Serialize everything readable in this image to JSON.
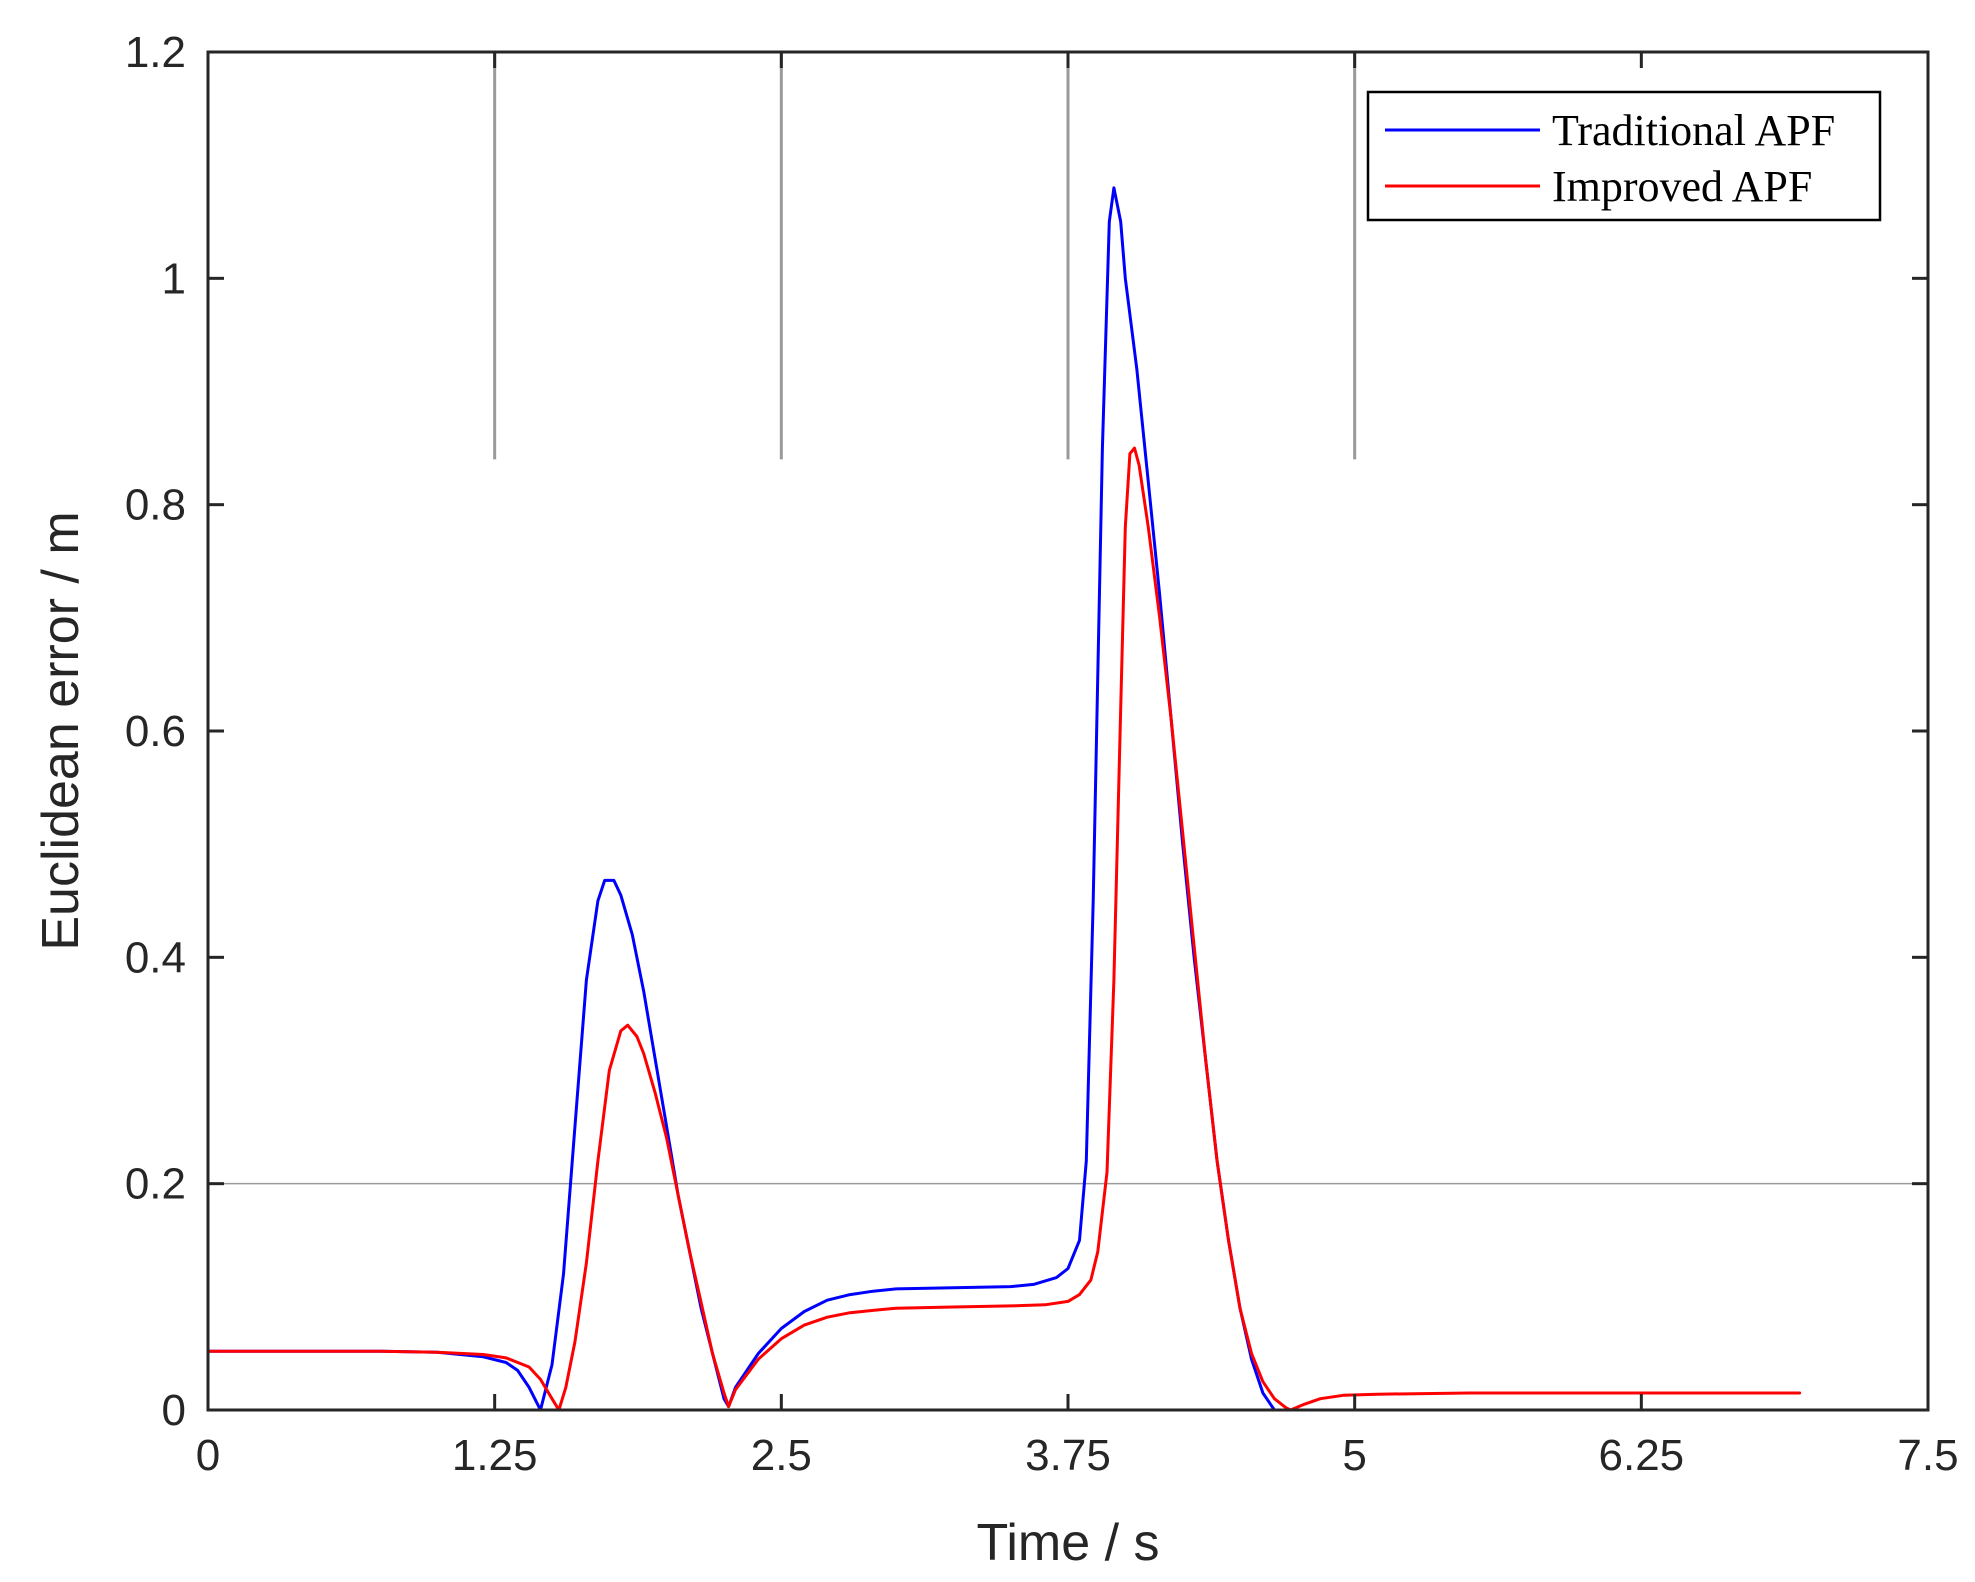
{
  "chart_data": {
    "type": "line",
    "title": "",
    "xlabel": "Time / s",
    "ylabel": "Euclidean error / m",
    "xlim": [
      0,
      7.5
    ],
    "ylim": [
      0,
      1.2
    ],
    "xticks": [
      0,
      1.25,
      2.5,
      3.75,
      5,
      6.25,
      7.5
    ],
    "xtick_labels": [
      "0",
      "1.25",
      "2.5",
      "3.75",
      "5",
      "6.25",
      "7.5"
    ],
    "yticks": [
      0,
      0.2,
      0.4,
      0.6,
      0.8,
      1,
      1.2
    ],
    "ytick_labels": [
      "0",
      "0.2",
      "0.4",
      "0.6",
      "0.8",
      "1",
      "1.2"
    ],
    "grid": false,
    "legend_position": "top-right",
    "reference_lines": {
      "vertical": [
        {
          "x": 1.25,
          "y_from": 0.84,
          "y_to": 1.2
        },
        {
          "x": 2.5,
          "y_from": 0.84,
          "y_to": 1.2
        },
        {
          "x": 3.75,
          "y_from": 0.84,
          "y_to": 1.2
        },
        {
          "x": 5,
          "y_from": 0.84,
          "y_to": 1.2
        }
      ],
      "horizontal": [
        {
          "y": 0.2
        }
      ]
    },
    "series": [
      {
        "name": "Traditional APF",
        "color": "#0000ff",
        "points": [
          [
            0,
            0.052
          ],
          [
            0.25,
            0.052
          ],
          [
            0.5,
            0.052
          ],
          [
            0.75,
            0.052
          ],
          [
            1.0,
            0.051
          ],
          [
            1.1,
            0.049
          ],
          [
            1.2,
            0.047
          ],
          [
            1.3,
            0.042
          ],
          [
            1.35,
            0.035
          ],
          [
            1.4,
            0.02
          ],
          [
            1.43,
            0.008
          ],
          [
            1.45,
            0.0
          ],
          [
            1.5,
            0.04
          ],
          [
            1.55,
            0.12
          ],
          [
            1.6,
            0.25
          ],
          [
            1.65,
            0.38
          ],
          [
            1.7,
            0.45
          ],
          [
            1.73,
            0.468
          ],
          [
            1.77,
            0.468
          ],
          [
            1.8,
            0.455
          ],
          [
            1.85,
            0.42
          ],
          [
            1.9,
            0.37
          ],
          [
            1.95,
            0.31
          ],
          [
            2.0,
            0.25
          ],
          [
            2.05,
            0.19
          ],
          [
            2.1,
            0.14
          ],
          [
            2.15,
            0.09
          ],
          [
            2.2,
            0.05
          ],
          [
            2.25,
            0.01
          ],
          [
            2.27,
            0.003
          ],
          [
            2.3,
            0.02
          ],
          [
            2.4,
            0.05
          ],
          [
            2.5,
            0.072
          ],
          [
            2.6,
            0.087
          ],
          [
            2.7,
            0.097
          ],
          [
            2.8,
            0.102
          ],
          [
            2.9,
            0.105
          ],
          [
            3.0,
            0.107
          ],
          [
            3.25,
            0.108
          ],
          [
            3.5,
            0.109
          ],
          [
            3.6,
            0.111
          ],
          [
            3.7,
            0.117
          ],
          [
            3.75,
            0.125
          ],
          [
            3.8,
            0.15
          ],
          [
            3.83,
            0.22
          ],
          [
            3.86,
            0.45
          ],
          [
            3.9,
            0.85
          ],
          [
            3.93,
            1.05
          ],
          [
            3.95,
            1.08
          ],
          [
            3.98,
            1.05
          ],
          [
            4.0,
            1.0
          ],
          [
            4.05,
            0.92
          ],
          [
            4.1,
            0.82
          ],
          [
            4.15,
            0.72
          ],
          [
            4.2,
            0.61
          ],
          [
            4.25,
            0.5
          ],
          [
            4.3,
            0.4
          ],
          [
            4.35,
            0.31
          ],
          [
            4.4,
            0.22
          ],
          [
            4.45,
            0.15
          ],
          [
            4.5,
            0.09
          ],
          [
            4.55,
            0.045
          ],
          [
            4.6,
            0.015
          ],
          [
            4.65,
            0.0
          ],
          [
            5.0,
            0.0
          ],
          [
            5.5,
            0.0
          ],
          [
            6.0,
            0.0
          ],
          [
            6.5,
            0.0
          ],
          [
            6.65,
            0.0
          ]
        ]
      },
      {
        "name": "Improved APF",
        "color": "#ff0000",
        "points": [
          [
            0,
            0.052
          ],
          [
            0.25,
            0.052
          ],
          [
            0.5,
            0.052
          ],
          [
            0.75,
            0.052
          ],
          [
            1.0,
            0.051
          ],
          [
            1.1,
            0.05
          ],
          [
            1.2,
            0.049
          ],
          [
            1.3,
            0.046
          ],
          [
            1.4,
            0.038
          ],
          [
            1.45,
            0.027
          ],
          [
            1.5,
            0.01
          ],
          [
            1.53,
            0.0
          ],
          [
            1.56,
            0.02
          ],
          [
            1.6,
            0.06
          ],
          [
            1.65,
            0.13
          ],
          [
            1.7,
            0.22
          ],
          [
            1.75,
            0.3
          ],
          [
            1.8,
            0.335
          ],
          [
            1.83,
            0.34
          ],
          [
            1.87,
            0.33
          ],
          [
            1.9,
            0.315
          ],
          [
            1.95,
            0.28
          ],
          [
            2.0,
            0.24
          ],
          [
            2.05,
            0.19
          ],
          [
            2.1,
            0.14
          ],
          [
            2.15,
            0.095
          ],
          [
            2.2,
            0.05
          ],
          [
            2.25,
            0.015
          ],
          [
            2.27,
            0.003
          ],
          [
            2.3,
            0.018
          ],
          [
            2.4,
            0.045
          ],
          [
            2.5,
            0.063
          ],
          [
            2.6,
            0.075
          ],
          [
            2.7,
            0.082
          ],
          [
            2.8,
            0.086
          ],
          [
            2.9,
            0.088
          ],
          [
            3.0,
            0.09
          ],
          [
            3.25,
            0.091
          ],
          [
            3.5,
            0.092
          ],
          [
            3.65,
            0.093
          ],
          [
            3.75,
            0.096
          ],
          [
            3.8,
            0.102
          ],
          [
            3.85,
            0.115
          ],
          [
            3.88,
            0.14
          ],
          [
            3.92,
            0.21
          ],
          [
            3.95,
            0.38
          ],
          [
            3.98,
            0.62
          ],
          [
            4.0,
            0.78
          ],
          [
            4.02,
            0.845
          ],
          [
            4.04,
            0.85
          ],
          [
            4.06,
            0.835
          ],
          [
            4.1,
            0.78
          ],
          [
            4.15,
            0.7
          ],
          [
            4.2,
            0.61
          ],
          [
            4.25,
            0.51
          ],
          [
            4.3,
            0.41
          ],
          [
            4.35,
            0.31
          ],
          [
            4.4,
            0.22
          ],
          [
            4.45,
            0.15
          ],
          [
            4.5,
            0.09
          ],
          [
            4.55,
            0.05
          ],
          [
            4.6,
            0.025
          ],
          [
            4.65,
            0.01
          ],
          [
            4.7,
            0.002
          ],
          [
            4.72,
            0.0
          ],
          [
            4.78,
            0.005
          ],
          [
            4.85,
            0.01
          ],
          [
            4.95,
            0.013
          ],
          [
            5.1,
            0.014
          ],
          [
            5.5,
            0.015
          ],
          [
            6.0,
            0.015
          ],
          [
            6.5,
            0.015
          ],
          [
            6.94,
            0.015
          ]
        ]
      }
    ]
  }
}
